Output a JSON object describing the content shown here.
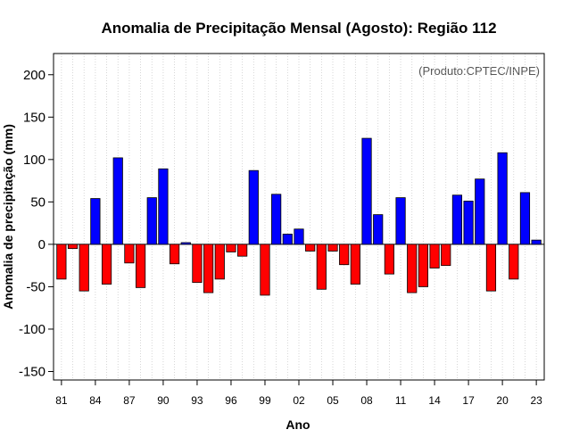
{
  "chart_data": {
    "type": "bar",
    "title": "Anomalia de Precipitação Mensal (Agosto): Região 112",
    "xlabel": "Ano",
    "ylabel": "Anomalia de precipitação (mm)",
    "annotation": "(Produto:CPTEC/INPE)",
    "ylim": [
      -160,
      225
    ],
    "yticks": [
      -150,
      -100,
      -50,
      0,
      50,
      100,
      150,
      200
    ],
    "xtick_labels": [
      "81",
      "84",
      "87",
      "90",
      "93",
      "96",
      "99",
      "02",
      "05",
      "08",
      "11",
      "14",
      "17",
      "20",
      "23"
    ],
    "years": [
      1981,
      1982,
      1983,
      1984,
      1985,
      1986,
      1987,
      1988,
      1989,
      1990,
      1991,
      1992,
      1993,
      1994,
      1995,
      1996,
      1997,
      1998,
      1999,
      2000,
      2001,
      2002,
      2003,
      2004,
      2005,
      2006,
      2007,
      2008,
      2009,
      2010,
      2011,
      2012,
      2013,
      2014,
      2015,
      2016,
      2017,
      2018,
      2019,
      2020,
      2021,
      2022,
      2023
    ],
    "values": [
      -41,
      -5,
      -55,
      54,
      -47,
      102,
      -22,
      -51,
      55,
      89,
      -23,
      2,
      -45,
      -57,
      -41,
      -9,
      -14,
      87,
      -60,
      59,
      12,
      18,
      -8,
      -53,
      -8,
      -24,
      -47,
      125,
      35,
      -35,
      55,
      -57,
      -50,
      -28,
      -25,
      58,
      51,
      77,
      -55,
      108,
      -41,
      61,
      5
    ],
    "grid": true,
    "colors": {
      "positive": "#0000ff",
      "negative": "#ff0000",
      "grid": "#cccccc",
      "zero_line": "#000000"
    }
  }
}
